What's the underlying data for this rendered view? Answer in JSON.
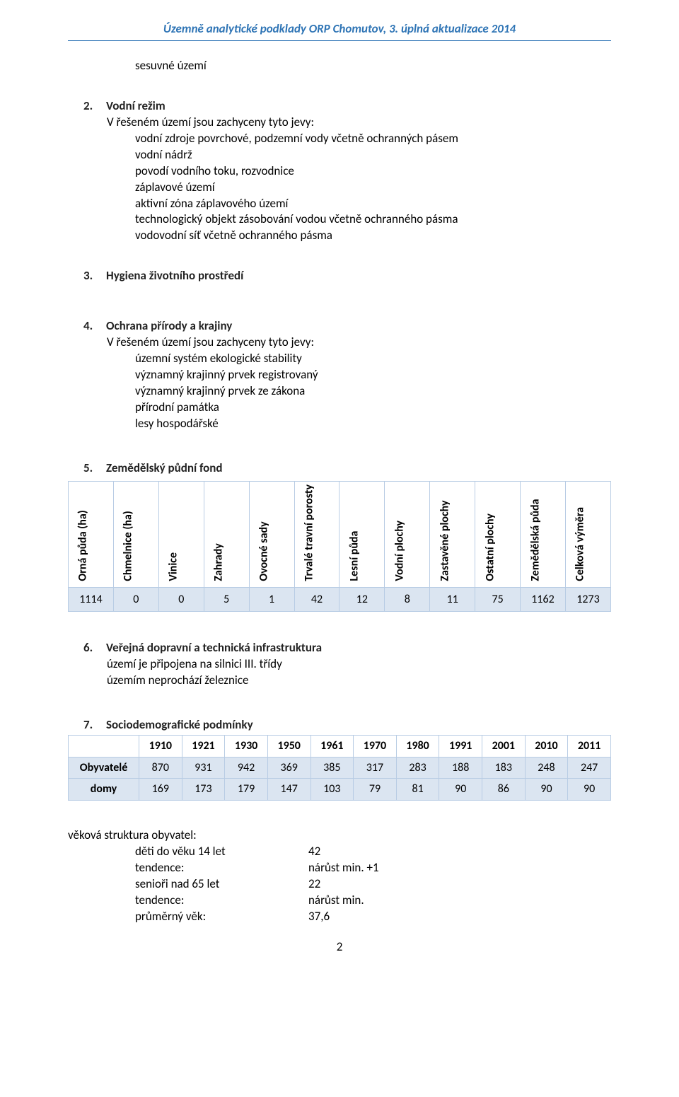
{
  "header": {
    "title": "Územně analytické podklady ORP Chomutov, 3. úplná aktualizace 2014"
  },
  "intro": {
    "line": "sesuvné území"
  },
  "sec2": {
    "num": "2.",
    "title": "Vodní režim",
    "intro": "V řešeném území jsou zachyceny tyto jevy:",
    "items": [
      "vodní zdroje povrchové, podzemní vody včetně ochranných pásem",
      "vodní nádrž",
      "povodí vodního toku, rozvodnice",
      "záplavové území",
      "aktivní zóna záplavového území",
      "technologický objekt zásobování vodou včetně ochranného pásma",
      "vodovodní síť včetně ochranného pásma"
    ]
  },
  "sec3": {
    "num": "3.",
    "title": "Hygiena životního prostředí"
  },
  "sec4": {
    "num": "4.",
    "title": "Ochrana přírody a krajiny",
    "intro": "V řešeném území jsou zachyceny tyto jevy:",
    "items": [
      "územní systém ekologické stability",
      "významný krajinný prvek registrovaný",
      "významný krajinný prvek ze zákona",
      "přírodní památka",
      "lesy hospodářské"
    ]
  },
  "sec5": {
    "num": "5.",
    "title": "Zemědělský půdní fond"
  },
  "land": {
    "columns": [
      "Orná půda (ha)",
      "Chmelnice (ha)",
      "Vinice",
      "Zahrady",
      "Ovocné sady",
      "Trvalé travní porosty",
      "Lesní půda",
      "Vodní plochy",
      "Zastavěné plochy",
      "Ostatní plochy",
      "Zemědělská půda",
      "Celková výměra"
    ],
    "values": [
      "1114",
      "0",
      "0",
      "5",
      "1",
      "42",
      "12",
      "8",
      "11",
      "75",
      "1162",
      "1273"
    ],
    "row_bg": "#dbe5f1",
    "border_color": "#b8cce4"
  },
  "sec6": {
    "num": "6.",
    "title": "Veřejná dopravní a technická infrastruktura",
    "lines": [
      "území je připojena na silnici III. třídy",
      "územím neprochází železnice"
    ]
  },
  "sec7": {
    "num": "7.",
    "title": "Sociodemografické podmínky"
  },
  "demo": {
    "years": [
      "1910",
      "1921",
      "1930",
      "1950",
      "1961",
      "1970",
      "1980",
      "1991",
      "2001",
      "2010",
      "2011"
    ],
    "rows": [
      {
        "label": "Obyvatelé",
        "vals": [
          "870",
          "931",
          "942",
          "369",
          "385",
          "317",
          "283",
          "188",
          "183",
          "248",
          "247"
        ]
      },
      {
        "label": "domy",
        "vals": [
          "169",
          "173",
          "179",
          "147",
          "103",
          "79",
          "81",
          "90",
          "86",
          "90",
          "90"
        ]
      }
    ]
  },
  "age": {
    "heading": "věková struktura obyvatel:",
    "rows": [
      {
        "k": "děti do věku 14 let",
        "v": "42"
      },
      {
        "k": "tendence:",
        "v": "nárůst min. +1"
      },
      {
        "k": "senioři nad 65 let",
        "v": "22"
      },
      {
        "k": "tendence:",
        "v": "nárůst min."
      },
      {
        "k": "průměrný věk:",
        "v": "37,6"
      }
    ]
  },
  "page": {
    "number": "2"
  }
}
